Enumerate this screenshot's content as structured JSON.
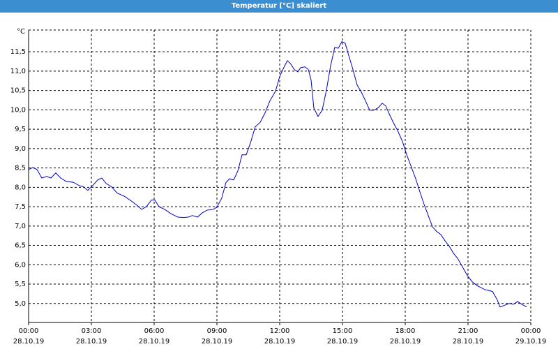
{
  "window_title": "Temperatur [°C] skaliert",
  "chart_data": {
    "type": "line",
    "y_unit": "°C",
    "x": [
      0,
      0.2,
      0.4,
      0.63,
      0.87,
      1.07,
      1.3,
      1.53,
      1.8,
      2.13,
      2.4,
      2.63,
      2.83,
      3.07,
      3.3,
      3.5,
      3.7,
      3.97,
      4.23,
      4.57,
      4.9,
      5.17,
      5.4,
      5.63,
      5.87,
      6.03,
      6.23,
      6.5,
      6.8,
      7.13,
      7.4,
      7.63,
      7.83,
      8.07,
      8.3,
      8.53,
      8.83,
      9.0,
      9.23,
      9.43,
      9.6,
      9.8,
      10.0,
      10.2,
      10.4,
      10.6,
      10.83,
      11.07,
      11.3,
      11.53,
      11.8,
      12.0,
      12.23,
      12.37,
      12.53,
      12.7,
      12.87,
      13.0,
      13.2,
      13.37,
      13.5,
      13.63,
      13.83,
      14.03,
      14.23,
      14.43,
      14.63,
      14.8,
      14.97,
      15.13,
      15.3,
      15.5,
      15.7,
      15.9,
      16.1,
      16.3,
      16.5,
      16.7,
      16.9,
      17.07,
      17.23,
      17.43,
      17.63,
      17.87,
      18.07,
      18.3,
      18.5,
      18.7,
      18.9,
      19.1,
      19.3,
      19.5,
      19.7,
      19.9,
      20.1,
      20.3,
      20.5,
      20.73,
      20.97,
      21.2,
      21.47,
      21.8,
      22.17,
      22.4,
      22.53,
      22.73,
      22.97,
      23.17,
      23.37,
      23.57,
      23.8
    ],
    "series": [
      {
        "name": "Temperatur",
        "color": "#0000c8",
        "values": [
          8.46,
          8.51,
          8.46,
          8.24,
          8.28,
          8.24,
          8.37,
          8.24,
          8.15,
          8.13,
          8.05,
          8.01,
          7.92,
          8.05,
          8.19,
          8.24,
          8.1,
          8.01,
          7.85,
          7.77,
          7.65,
          7.54,
          7.43,
          7.5,
          7.67,
          7.67,
          7.5,
          7.43,
          7.32,
          7.23,
          7.22,
          7.23,
          7.27,
          7.23,
          7.34,
          7.41,
          7.43,
          7.49,
          7.72,
          8.12,
          8.22,
          8.19,
          8.42,
          8.84,
          8.84,
          9.14,
          9.56,
          9.68,
          9.92,
          10.23,
          10.48,
          10.86,
          11.13,
          11.27,
          11.18,
          11.04,
          10.98,
          11.09,
          11.11,
          11.04,
          10.77,
          10.05,
          9.83,
          9.99,
          10.5,
          11.13,
          11.61,
          11.59,
          11.76,
          11.72,
          11.4,
          11.04,
          10.64,
          10.46,
          10.23,
          9.99,
          9.99,
          10.05,
          10.17,
          10.1,
          9.9,
          9.67,
          9.47,
          9.18,
          8.84,
          8.51,
          8.22,
          7.88,
          7.56,
          7.27,
          6.98,
          6.86,
          6.78,
          6.62,
          6.48,
          6.3,
          6.17,
          5.95,
          5.72,
          5.56,
          5.45,
          5.36,
          5.31,
          5.09,
          4.91,
          4.95,
          5.0,
          4.98,
          5.05,
          4.98,
          4.91
        ]
      }
    ],
    "xlim": [
      0,
      24
    ],
    "xticks": [
      {
        "value": 0,
        "label": "00:00"
      },
      {
        "value": 3,
        "label": "03:00"
      },
      {
        "value": 6,
        "label": "06:00"
      },
      {
        "value": 9,
        "label": "09:00"
      },
      {
        "value": 12,
        "label": "12:00"
      },
      {
        "value": 15,
        "label": "15:00"
      },
      {
        "value": 18,
        "label": "18:00"
      },
      {
        "value": 21,
        "label": "21:00"
      },
      {
        "value": 24,
        "label": "00:00"
      }
    ],
    "xtick_dates": [
      "28.10.19",
      "28.10.19",
      "28.10.19",
      "28.10.19",
      "28.10.19",
      "28.10.19",
      "28.10.19",
      "28.10.19",
      "29.10.19"
    ],
    "ylim": [
      4.51,
      12.06
    ],
    "yticks": [
      {
        "value": 5.0,
        "label": "5,0"
      },
      {
        "value": 5.5,
        "label": "5,5"
      },
      {
        "value": 6.0,
        "label": "6,0"
      },
      {
        "value": 6.5,
        "label": "6,5"
      },
      {
        "value": 7.0,
        "label": "7,0"
      },
      {
        "value": 7.5,
        "label": "7,5"
      },
      {
        "value": 8.0,
        "label": "8,0"
      },
      {
        "value": 8.5,
        "label": "8,5"
      },
      {
        "value": 9.0,
        "label": "9,0"
      },
      {
        "value": 9.5,
        "label": "9,5"
      },
      {
        "value": 10.0,
        "label": "10,0"
      },
      {
        "value": 10.5,
        "label": "10,5"
      },
      {
        "value": 11.0,
        "label": "11,0"
      },
      {
        "value": 11.5,
        "label": "11,5"
      }
    ],
    "grid": true
  }
}
